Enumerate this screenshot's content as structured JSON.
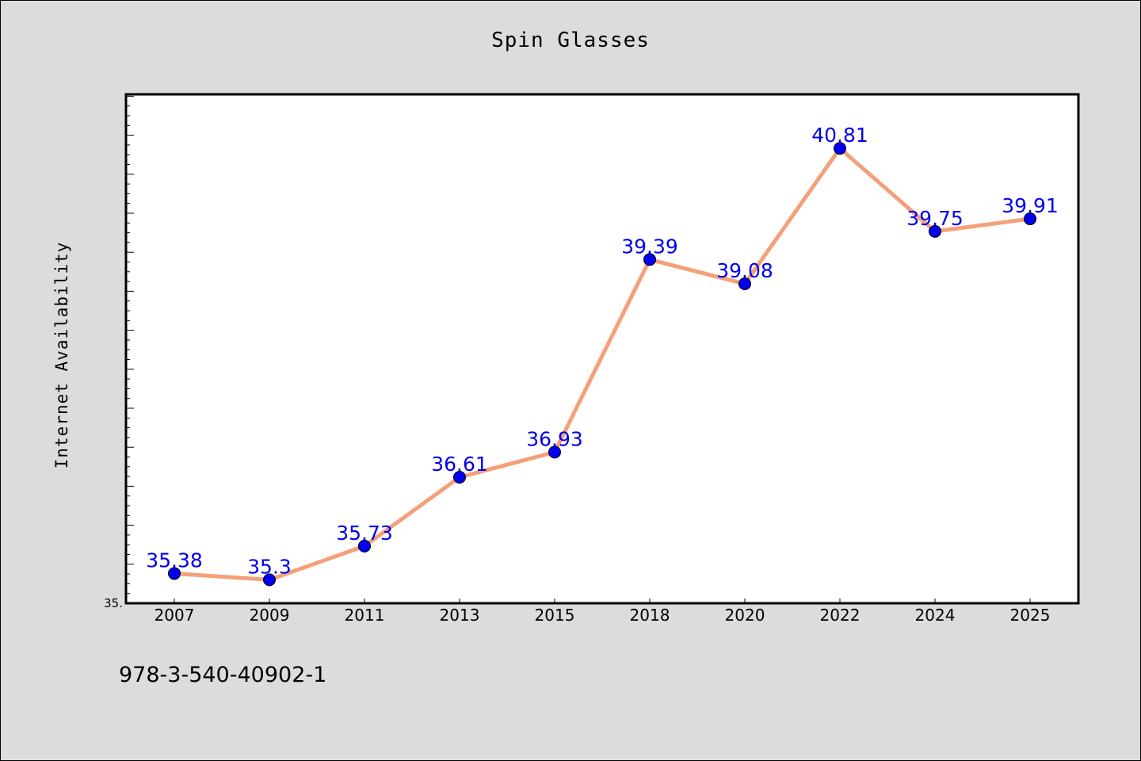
{
  "chart_data": {
    "type": "line",
    "title": "Spin Glasses",
    "ylabel": "Internet Availability",
    "xlabel": "",
    "categories": [
      "2007",
      "2009",
      "2011",
      "2013",
      "2015",
      "2018",
      "2020",
      "2022",
      "2024",
      "2025"
    ],
    "series": [
      {
        "values": [
          35.38,
          35.3,
          35.73,
          36.61,
          36.93,
          39.39,
          39.08,
          40.81,
          39.75,
          39.91
        ],
        "line_color": "#f4a07a",
        "marker_color": "#0000ee"
      }
    ],
    "data_labels": [
      "35.38",
      "35.3",
      "35.73",
      "36.61",
      "36.93",
      "39.39",
      "39.08",
      "40.81",
      "39.75",
      "39.91"
    ],
    "ylim": [
      35.0,
      41.5
    ],
    "y_tick_labels": [
      "35."
    ],
    "grid": false,
    "legend": "none"
  },
  "footer": {
    "text": "978-3-540-40902-1"
  }
}
